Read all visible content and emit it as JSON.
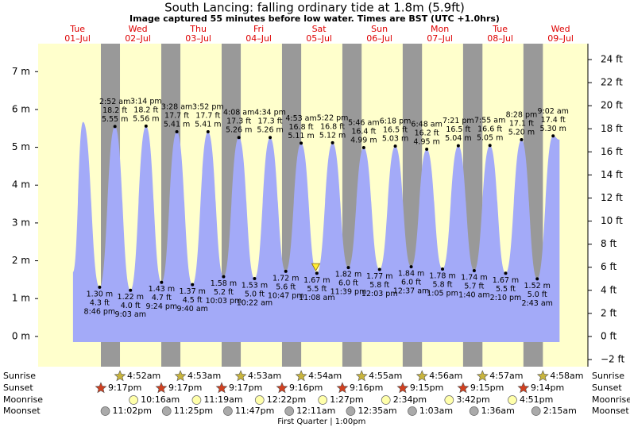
{
  "chart_data": {
    "type": "area",
    "title": "South Lancing: falling  ordinary tide at 1.8m (5.9ft)",
    "subtitle": "Image captured 55 minutes before low water. Times are BST (UTC +1.0hrs)",
    "color": "#a3aaf8",
    "night_color": "#999999",
    "background": "#ffffcc",
    "day_color": "#dd0000",
    "days": [
      "Tue",
      "Wed",
      "Thu",
      "Fri",
      "Sat",
      "Sun",
      "Mon",
      "Tue",
      "Wed"
    ],
    "dates": [
      "01–Jul",
      "02–Jul",
      "03–Jul",
      "04–Jul",
      "05–Jul",
      "06–Jul",
      "07–Jul",
      "08–Jul",
      "09–Jul"
    ],
    "xlim": [
      -3.66,
      214.86
    ],
    "x": [
      10.2,
      14.2,
      20.77,
      26.87,
      33.05,
      39.23,
      45.4,
      51.47,
      57.67,
      63.87,
      70.05,
      76.13,
      82.37,
      88.57,
      94.78,
      100.88,
      107.13,
      113.37,
      119.65,
      125.77,
      132.05,
      138.3,
      144.62,
      150.8,
      157.08,
      163.35,
      169.67,
      175.92,
      182.17,
      188.47,
      194.72,
      201.03,
      203.6
    ],
    "values": [
      1.7,
      5.67,
      1.3,
      5.55,
      1.22,
      5.56,
      1.43,
      5.41,
      1.37,
      5.41,
      1.58,
      5.26,
      1.53,
      5.26,
      1.72,
      5.11,
      1.67,
      5.12,
      1.82,
      4.99,
      1.77,
      5.03,
      1.84,
      4.95,
      1.78,
      5.04,
      1.74,
      5.05,
      1.67,
      5.2,
      1.52,
      5.3,
      5.2
    ],
    "value_labels": [
      null,
      null,
      "1.30 m",
      "5.55 m",
      "1.22 m",
      "5.56 m",
      "1.43 m",
      "5.41 m",
      "1.37 m",
      "5.41 m",
      "1.58 m",
      "5.26 m",
      "1.53 m",
      "5.26 m",
      "1.72 m",
      "5.11 m",
      "1.67 m",
      "5.12 m",
      "1.82 m",
      "4.99 m",
      "1.77 m",
      "5.03 m",
      "1.84 m",
      "4.95 m",
      "1.78 m",
      "5.04 m",
      "1.74 m",
      "5.05 m",
      "1.67 m",
      "5.20 m",
      "1.52 m",
      "5.30 m",
      null
    ],
    "ft_labels": [
      null,
      null,
      "4.3 ft",
      "18.2 ft",
      "4.0 ft",
      "18.2 ft",
      "4.7 ft",
      "17.7 ft",
      "4.5 ft",
      "17.7 ft",
      "5.2 ft",
      "17.3 ft",
      "5.0 ft",
      "17.3 ft",
      "5.6 ft",
      "16.8 ft",
      "5.5 ft",
      "16.8 ft",
      "6.0 ft",
      "16.4 ft",
      "5.8 ft",
      "16.5 ft",
      "6.0 ft",
      "16.2 ft",
      "5.8 ft",
      "16.5 ft",
      "5.7 ft",
      "16.6 ft",
      "5.5 ft",
      "17.1 ft",
      "5.0 ft",
      "17.4 ft",
      null
    ],
    "time_labels": [
      null,
      null,
      "8:46 pm",
      "2:52 am",
      "9:03 am",
      "3:14 pm",
      "9:24 pm",
      "3:28 am",
      "9:40 am",
      "3:52 pm",
      "10:03 pm",
      "4:08 am",
      "10:22 am",
      "4:34 pm",
      "10:47 pm",
      "4:53 am",
      "11:08 am",
      "5:22 pm",
      "11:39 pm",
      "5:46 am",
      "12:03 pm",
      "6:18 pm",
      "12:37 am",
      "6:48 am",
      "1:05 pm",
      "7:21 pm",
      "1:40 am",
      "7:55 am",
      "2:10 pm",
      "8:28 pm",
      "2:43 am",
      "9:02 am",
      null
    ],
    "now": {
      "x": 106.7,
      "value": 1.8
    },
    "ylim": [
      -0.8,
      7.74
    ],
    "yticks": [
      {
        "value": 0,
        "label": "0 m"
      },
      {
        "value": 1,
        "label": "1 m"
      },
      {
        "value": 2,
        "label": "2 m"
      },
      {
        "value": 3,
        "label": "3 m"
      },
      {
        "value": 4,
        "label": "4 m"
      },
      {
        "value": 5,
        "label": "5 m"
      },
      {
        "value": 6,
        "label": "6 m"
      },
      {
        "value": 7,
        "label": "7 m"
      }
    ],
    "y2lim": [
      -2.62,
      25.38
    ],
    "y2ticks": [
      {
        "value": -2,
        "label": "−2 ft"
      },
      {
        "value": 0,
        "label": "0 ft"
      },
      {
        "value": 2,
        "label": "2 ft"
      },
      {
        "value": 4,
        "label": "4 ft"
      },
      {
        "value": 6,
        "label": "6 ft"
      },
      {
        "value": 8,
        "label": "8 ft"
      },
      {
        "value": 10,
        "label": "10 ft"
      },
      {
        "value": 12,
        "label": "12 ft"
      },
      {
        "value": 14,
        "label": "14 ft"
      },
      {
        "value": 16,
        "label": "16 ft"
      },
      {
        "value": 18,
        "label": "18 ft"
      },
      {
        "value": 20,
        "label": "20 ft"
      },
      {
        "value": 22,
        "label": "22 ft"
      },
      {
        "value": 24,
        "label": "24 ft"
      }
    ],
    "rows": [
      {
        "label": "Sunrise",
        "icon": "star",
        "color": "#c8b43c",
        "times": [
          "4:52am",
          "4:53am",
          "4:53am",
          "4:54am",
          "4:55am",
          "4:56am",
          "4:57am",
          "4:58am"
        ],
        "x": [
          28.87,
          52.88,
          76.88,
          100.9,
          124.92,
          148.93,
          172.95,
          196.97
        ]
      },
      {
        "label": "Sunset",
        "icon": "star",
        "color": "#d04020",
        "times": [
          "9:17pm",
          "9:17pm",
          "9:17pm",
          "9:16pm",
          "9:16pm",
          "9:15pm",
          "9:15pm",
          "9:14pm"
        ],
        "x": [
          21.28,
          45.28,
          69.28,
          93.27,
          117.27,
          141.25,
          165.25,
          189.23
        ]
      },
      {
        "label": "Moonrise",
        "icon": "circle",
        "color": "#ffffaa",
        "times": [
          "10:16am",
          "11:19am",
          "12:22pm",
          "1:27pm",
          "2:34pm",
          "3:42pm",
          "4:51pm"
        ],
        "x": [
          34.27,
          59.32,
          84.37,
          109.45,
          134.57,
          159.7,
          184.85
        ]
      },
      {
        "label": "Moonset",
        "icon": "circle",
        "color": "#aaaaaa",
        "times": [
          "11:02pm",
          "11:25pm",
          "11:47pm",
          "12:11am",
          "12:35am",
          "1:03am",
          "1:36am",
          "2:15am"
        ],
        "x": [
          23.03,
          47.42,
          71.78,
          96.18,
          120.58,
          145.05,
          169.6,
          194.25
        ]
      }
    ],
    "moon_phase": {
      "label": "First Quarter | 1:00pm",
      "x": 109
    }
  }
}
